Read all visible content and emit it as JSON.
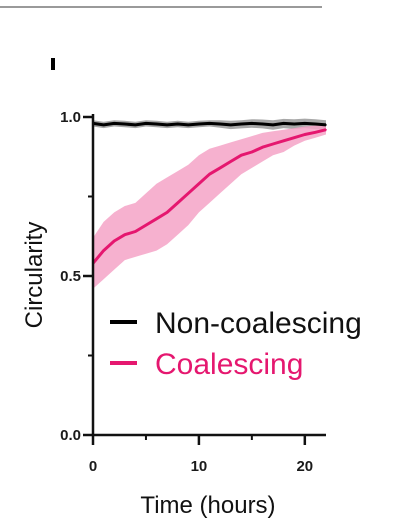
{
  "chart_data": {
    "type": "line",
    "title": "",
    "xlabel": "Time (hours)",
    "ylabel": "Circularity",
    "xlim": [
      0,
      22
    ],
    "ylim": [
      0,
      1.0
    ],
    "x_ticks": [
      0,
      10,
      20
    ],
    "y_ticks": [
      0.0,
      0.5,
      1.0
    ],
    "x_tick_labels": [
      "0",
      "10",
      "20"
    ],
    "y_tick_labels": [
      "0.0",
      "0.5",
      "1.0"
    ],
    "grid": false,
    "legend_position": "center-right",
    "series": [
      {
        "name": "Non-coalescing",
        "color": "#000000",
        "band_color": "#9e9e9e",
        "x": [
          0,
          1,
          2,
          3,
          4,
          5,
          6,
          7,
          8,
          9,
          10,
          11,
          12,
          13,
          14,
          15,
          16,
          17,
          18,
          19,
          20,
          21,
          22
        ],
        "mean": [
          0.98,
          0.975,
          0.98,
          0.978,
          0.975,
          0.98,
          0.978,
          0.975,
          0.978,
          0.975,
          0.978,
          0.98,
          0.978,
          0.975,
          0.978,
          0.98,
          0.978,
          0.975,
          0.98,
          0.978,
          0.98,
          0.978,
          0.975
        ],
        "lower": [
          0.97,
          0.965,
          0.97,
          0.968,
          0.965,
          0.97,
          0.968,
          0.965,
          0.968,
          0.965,
          0.968,
          0.97,
          0.966,
          0.962,
          0.964,
          0.966,
          0.964,
          0.96,
          0.965,
          0.962,
          0.965,
          0.962,
          0.96
        ],
        "upper": [
          0.99,
          0.985,
          0.99,
          0.988,
          0.985,
          0.99,
          0.988,
          0.985,
          0.988,
          0.985,
          0.988,
          0.99,
          0.99,
          0.988,
          0.99,
          0.993,
          0.992,
          0.99,
          0.994,
          0.993,
          0.995,
          0.993,
          0.99
        ]
      },
      {
        "name": "Coalescing",
        "color": "#e5176f",
        "band_color": "#f5a3c7",
        "x": [
          0,
          1,
          2,
          3,
          4,
          5,
          6,
          7,
          8,
          9,
          10,
          11,
          12,
          13,
          14,
          15,
          16,
          17,
          18,
          19,
          20,
          21,
          22
        ],
        "mean": [
          0.54,
          0.58,
          0.61,
          0.63,
          0.64,
          0.66,
          0.68,
          0.7,
          0.73,
          0.76,
          0.79,
          0.82,
          0.84,
          0.86,
          0.88,
          0.89,
          0.905,
          0.915,
          0.925,
          0.935,
          0.945,
          0.952,
          0.96
        ],
        "lower": [
          0.46,
          0.49,
          0.52,
          0.55,
          0.56,
          0.57,
          0.58,
          0.6,
          0.63,
          0.66,
          0.7,
          0.73,
          0.76,
          0.79,
          0.82,
          0.84,
          0.86,
          0.88,
          0.89,
          0.91,
          0.925,
          0.935,
          0.945
        ],
        "upper": [
          0.62,
          0.67,
          0.7,
          0.72,
          0.73,
          0.76,
          0.79,
          0.81,
          0.83,
          0.85,
          0.88,
          0.9,
          0.91,
          0.92,
          0.93,
          0.94,
          0.95,
          0.955,
          0.96,
          0.965,
          0.97,
          0.973,
          0.975
        ]
      }
    ]
  }
}
